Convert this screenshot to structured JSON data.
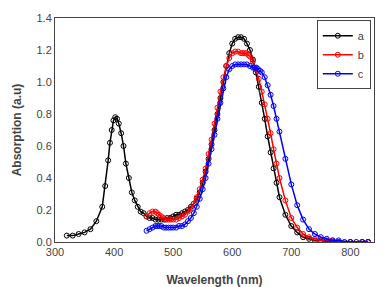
{
  "chart_data": {
    "type": "line",
    "xlabel": "Wavelength (nm)",
    "ylabel": "Absorption (a.u)",
    "xlim": [
      300,
      840
    ],
    "ylim": [
      0,
      1.4
    ],
    "xticks": [
      300,
      400,
      500,
      600,
      700,
      800
    ],
    "yticks": [
      {
        "value": 0.0,
        "label": "0.0"
      },
      0.2,
      0.4,
      0.6,
      0.8,
      {
        "value": 1.0,
        "label": "1.0"
      },
      1.2,
      1.4
    ],
    "grid": false,
    "legend": "upper right",
    "marker": "circle-open",
    "series": [
      {
        "name": "a",
        "color": "black",
        "x": [
          320,
          330,
          340,
          350,
          360,
          370,
          380,
          385,
          390,
          393,
          396,
          399,
          402,
          405,
          408,
          412,
          416,
          420,
          425,
          430,
          435,
          440,
          445,
          450,
          455,
          460,
          465,
          470,
          475,
          480,
          485,
          490,
          495,
          500,
          505,
          510,
          515,
          520,
          525,
          530,
          535,
          540,
          545,
          550,
          555,
          560,
          565,
          570,
          575,
          580,
          585,
          590,
          595,
          600,
          605,
          610,
          615,
          620,
          625,
          630,
          635,
          640,
          645,
          650,
          655,
          660,
          665,
          670,
          675,
          680,
          690,
          700,
          710,
          720,
          730,
          740,
          750,
          760,
          770,
          780,
          790,
          800,
          810,
          820,
          830
        ],
        "values": [
          0.04,
          0.04,
          0.05,
          0.06,
          0.08,
          0.13,
          0.22,
          0.35,
          0.51,
          0.62,
          0.7,
          0.76,
          0.78,
          0.77,
          0.74,
          0.68,
          0.6,
          0.49,
          0.4,
          0.31,
          0.26,
          0.22,
          0.19,
          0.18,
          0.16,
          0.15,
          0.15,
          0.14,
          0.14,
          0.14,
          0.14,
          0.15,
          0.15,
          0.16,
          0.17,
          0.17,
          0.18,
          0.19,
          0.2,
          0.22,
          0.24,
          0.27,
          0.31,
          0.37,
          0.44,
          0.52,
          0.61,
          0.7,
          0.8,
          0.9,
          1.0,
          1.1,
          1.18,
          1.24,
          1.27,
          1.28,
          1.28,
          1.27,
          1.24,
          1.2,
          1.14,
          1.06,
          0.97,
          0.87,
          0.77,
          0.66,
          0.56,
          0.46,
          0.37,
          0.28,
          0.17,
          0.1,
          0.06,
          0.03,
          0.02,
          0.01,
          0.01,
          0.0,
          0.0,
          0.0,
          0.0,
          0.0,
          0.0,
          0.0,
          0.0
        ]
      },
      {
        "name": "b",
        "color": "red",
        "x": [
          455,
          460,
          465,
          470,
          473,
          476,
          480,
          484,
          488,
          492,
          496,
          500,
          505,
          510,
          515,
          520,
          525,
          530,
          535,
          540,
          545,
          550,
          555,
          560,
          565,
          570,
          575,
          580,
          585,
          590,
          595,
          600,
          605,
          610,
          615,
          618,
          621,
          624,
          627,
          630,
          635,
          640,
          645,
          650,
          655,
          660,
          665,
          670,
          675,
          680,
          690,
          700,
          710,
          720,
          730,
          740,
          750,
          760,
          770,
          780,
          800,
          820,
          830
        ],
        "values": [
          0.16,
          0.18,
          0.19,
          0.19,
          0.18,
          0.17,
          0.16,
          0.15,
          0.14,
          0.14,
          0.14,
          0.14,
          0.14,
          0.15,
          0.16,
          0.17,
          0.19,
          0.21,
          0.24,
          0.28,
          0.33,
          0.39,
          0.46,
          0.55,
          0.64,
          0.74,
          0.84,
          0.94,
          1.03,
          1.1,
          1.15,
          1.18,
          1.19,
          1.19,
          1.18,
          1.18,
          1.18,
          1.18,
          1.17,
          1.16,
          1.13,
          1.08,
          1.02,
          0.94,
          0.86,
          0.77,
          0.68,
          0.58,
          0.49,
          0.4,
          0.26,
          0.15,
          0.09,
          0.05,
          0.03,
          0.02,
          0.01,
          0.01,
          0.01,
          0.0,
          0.0,
          0.0,
          0.0
        ]
      },
      {
        "name": "c",
        "color": "blue",
        "x": [
          455,
          460,
          465,
          470,
          473,
          476,
          480,
          484,
          488,
          492,
          496,
          500,
          505,
          510,
          515,
          520,
          525,
          530,
          535,
          540,
          545,
          550,
          555,
          560,
          565,
          570,
          575,
          580,
          585,
          590,
          595,
          600,
          605,
          610,
          615,
          620,
          625,
          630,
          635,
          638,
          641,
          644,
          647,
          650,
          655,
          660,
          665,
          670,
          675,
          680,
          690,
          700,
          710,
          720,
          730,
          740,
          750,
          760,
          770,
          780,
          800,
          820,
          830
        ],
        "values": [
          0.07,
          0.08,
          0.09,
          0.1,
          0.1,
          0.1,
          0.1,
          0.09,
          0.09,
          0.09,
          0.09,
          0.09,
          0.09,
          0.1,
          0.1,
          0.11,
          0.13,
          0.15,
          0.18,
          0.22,
          0.27,
          0.33,
          0.4,
          0.49,
          0.58,
          0.67,
          0.77,
          0.87,
          0.96,
          1.03,
          1.08,
          1.1,
          1.11,
          1.11,
          1.11,
          1.11,
          1.11,
          1.1,
          1.09,
          1.09,
          1.09,
          1.08,
          1.07,
          1.06,
          1.03,
          0.98,
          0.92,
          0.85,
          0.77,
          0.69,
          0.52,
          0.36,
          0.23,
          0.14,
          0.08,
          0.05,
          0.03,
          0.02,
          0.01,
          0.01,
          0.0,
          0.0,
          0.0
        ]
      }
    ]
  }
}
